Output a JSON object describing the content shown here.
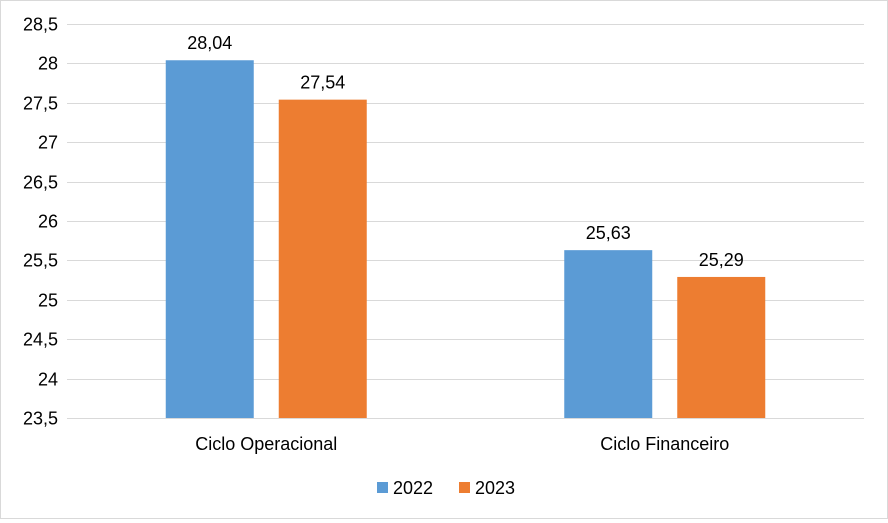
{
  "chart_data": {
    "type": "bar",
    "categories": [
      "Ciclo Operacional",
      "Ciclo Financeiro"
    ],
    "series": [
      {
        "name": "2022",
        "values": [
          28.04,
          25.63
        ],
        "labels": [
          "28,04",
          "25,63"
        ],
        "color": "#5B9BD5"
      },
      {
        "name": "2023",
        "values": [
          27.54,
          25.29
        ],
        "labels": [
          "27,54",
          "25,29"
        ],
        "color": "#ED7D31"
      }
    ],
    "ylim": [
      23.5,
      28.5
    ],
    "yticks": [
      23.5,
      24,
      24.5,
      25,
      25.5,
      26,
      26.5,
      27,
      27.5,
      28,
      28.5
    ],
    "ytick_labels": [
      "23,5",
      "24",
      "24,5",
      "25",
      "25,5",
      "26",
      "26,5",
      "27",
      "27,5",
      "28",
      "28,5"
    ],
    "grid": true,
    "legend_position": "bottom",
    "gridline_color": "#d9d9d9"
  }
}
